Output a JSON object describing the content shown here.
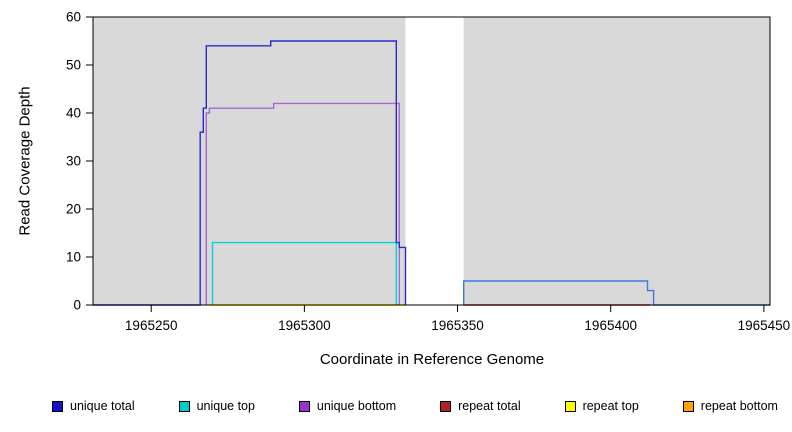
{
  "axes": {
    "x_label": "Coordinate in Reference Genome",
    "y_label": "Read Coverage Depth"
  },
  "chart_data": {
    "type": "line",
    "step": true,
    "title": "",
    "xlabel": "Coordinate in Reference Genome",
    "ylabel": "Read Coverage Depth",
    "xlim": [
      1965231,
      1965452
    ],
    "ylim": [
      0,
      60
    ],
    "x_ticks": [
      1965250,
      1965300,
      1965350,
      1965400,
      1965450
    ],
    "y_ticks": [
      0,
      10,
      20,
      30,
      40,
      50,
      60
    ],
    "grid": false,
    "legend_position": "bottom",
    "panel_bg": "#d9d9d9",
    "gap_region": {
      "x_start": 1965333,
      "x_end": 1965352,
      "color": "#ffffff"
    },
    "series": [
      {
        "name": "unique total",
        "color": "#1111cc",
        "segments": [
          {
            "color": "#2a2ad0",
            "points": [
              [
                1965231,
                0
              ],
              [
                1965266,
                0
              ],
              [
                1965266,
                36
              ],
              [
                1965267,
                36
              ],
              [
                1965267,
                41
              ],
              [
                1965268,
                41
              ],
              [
                1965268,
                54
              ],
              [
                1965289,
                54
              ],
              [
                1965289,
                55
              ],
              [
                1965330,
                55
              ],
              [
                1965330,
                13
              ],
              [
                1965331,
                13
              ],
              [
                1965331,
                12
              ],
              [
                1965333,
                12
              ],
              [
                1965333,
                0
              ]
            ]
          },
          {
            "color": "#4477e0",
            "points": [
              [
                1965352,
                0
              ],
              [
                1965352,
                5
              ],
              [
                1965412,
                5
              ],
              [
                1965412,
                3
              ],
              [
                1965414,
                3
              ],
              [
                1965414,
                0
              ],
              [
                1965452,
                0
              ]
            ]
          }
        ]
      },
      {
        "name": "unique top",
        "color": "#00cccc",
        "segments": [
          {
            "color": "#00d5d5",
            "points": [
              [
                1965270,
                0
              ],
              [
                1965270,
                13
              ],
              [
                1965330,
                13
              ],
              [
                1965330,
                0
              ]
            ]
          }
        ]
      },
      {
        "name": "unique bottom",
        "color": "#9933cc",
        "segments": [
          {
            "color": "#aa66d8",
            "points": [
              [
                1965268,
                0
              ],
              [
                1965268,
                40
              ],
              [
                1965269,
                40
              ],
              [
                1965269,
                41
              ],
              [
                1965290,
                41
              ],
              [
                1965290,
                42
              ],
              [
                1965331,
                42
              ],
              [
                1965331,
                0
              ]
            ]
          }
        ]
      },
      {
        "name": "repeat total",
        "color": "#b22222",
        "segments": [
          {
            "color": "#b22222",
            "points": [
              [
                1965352,
                0
              ],
              [
                1965413,
                0
              ]
            ]
          }
        ]
      },
      {
        "name": "repeat top",
        "color": "#ffff00",
        "segments": [
          {
            "color": "#ffff00",
            "points": [
              [
                1965269,
                0
              ],
              [
                1965333,
                0
              ]
            ]
          }
        ]
      },
      {
        "name": "repeat bottom",
        "color": "#ffa500",
        "segments": [
          {
            "color": "#ff9d0a",
            "points": [
              [
                1965269,
                0
              ],
              [
                1965333,
                0
              ]
            ]
          }
        ]
      }
    ]
  }
}
